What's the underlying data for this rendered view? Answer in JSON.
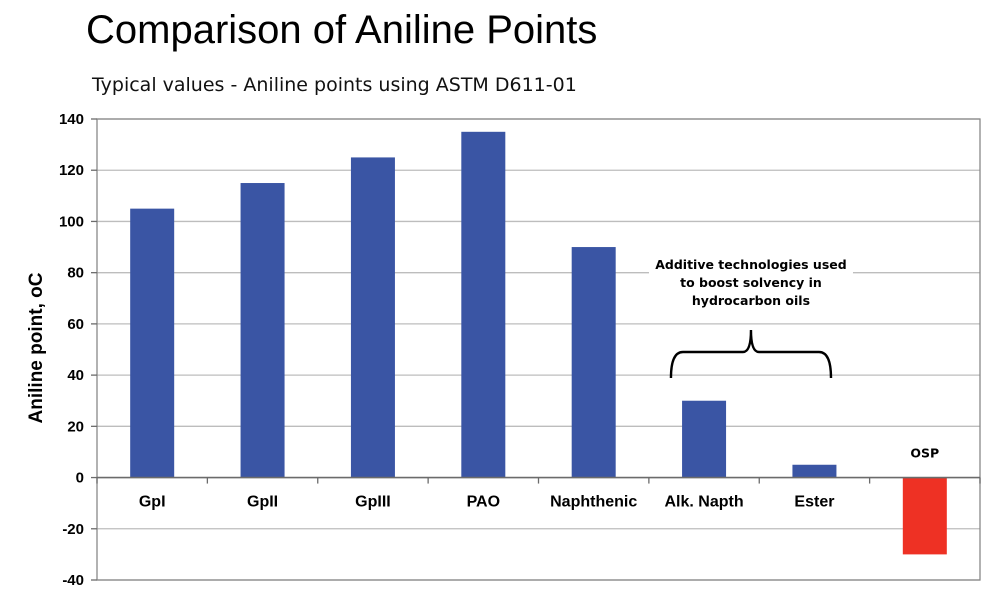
{
  "chart_data": {
    "type": "bar",
    "title": "Comparison of Aniline Points",
    "subtitle": "Typical values - Aniline points using ASTM D611-01",
    "xlabel": "",
    "ylabel": "Aniline point, oC",
    "ylim": [
      -40,
      140
    ],
    "yticks": [
      -40,
      -20,
      0,
      20,
      40,
      60,
      80,
      100,
      120,
      140
    ],
    "grid": true,
    "categories": [
      "GpI",
      "GpII",
      "GpIII",
      "PAO",
      "Naphthenic",
      "Alk. Napth",
      "Ester",
      ""
    ],
    "values": [
      105,
      115,
      125,
      135,
      90,
      30,
      5,
      -30
    ],
    "bar_colors": [
      "#3a55a4",
      "#3a55a4",
      "#3a55a4",
      "#3a55a4",
      "#3a55a4",
      "#3a55a4",
      "#3a55a4",
      "#ee3124"
    ],
    "value_labels": [
      "",
      "",
      "",
      "",
      "",
      "",
      "",
      "OSP"
    ],
    "annotation": {
      "lines": [
        "Additive technologies used",
        "to boost solvency in",
        "hydrocarbon oils"
      ],
      "spans_categories": [
        "Alk. Napth",
        "Ester"
      ]
    }
  }
}
